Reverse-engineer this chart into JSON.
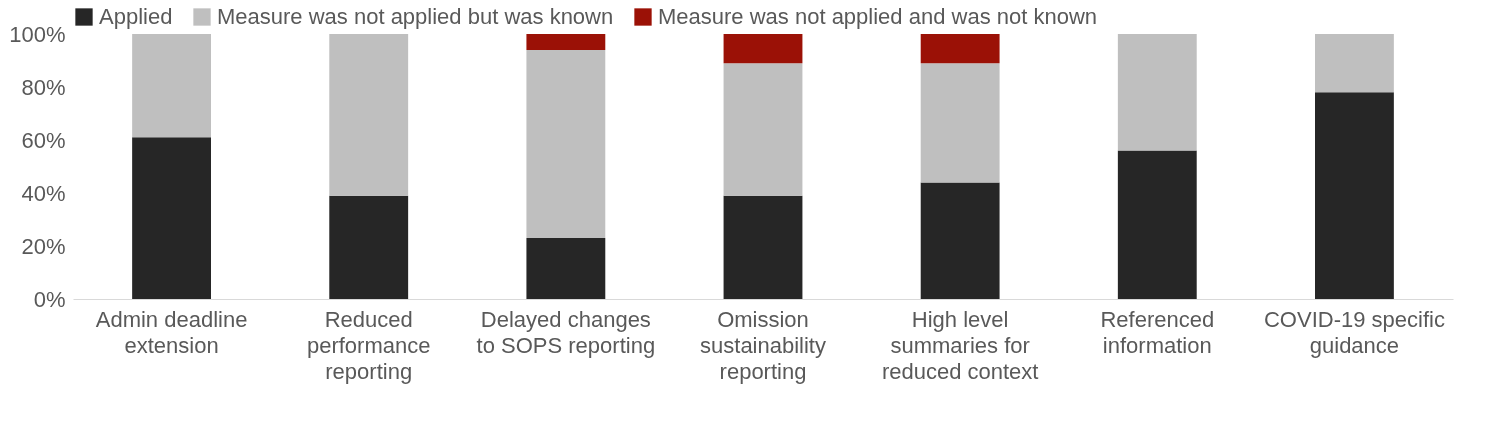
{
  "chart_data": {
    "type": "bar",
    "stacked": true,
    "categories": [
      "Admin deadline extension",
      "Reduced performance reporting",
      "Delayed changes to SOPS reporting",
      "Omission sustainability reporting",
      "High level summaries for reduced context",
      "Referenced information",
      "COVID-19 specific guidance"
    ],
    "series": [
      {
        "name": "Applied",
        "color": "#262626",
        "values": [
          61,
          39,
          23,
          39,
          44,
          56,
          78
        ]
      },
      {
        "name": "Measure was not applied but was known",
        "color": "#bfbfbf",
        "values": [
          39,
          61,
          71,
          50,
          45,
          44,
          22
        ]
      },
      {
        "name": "Measure was not applied and was not known",
        "color": "#9b1106",
        "values": [
          0,
          0,
          6,
          11,
          11,
          0,
          0
        ]
      }
    ],
    "ylim": [
      0,
      100
    ],
    "yticks": [
      {
        "value": 0,
        "label": "0%"
      },
      {
        "value": 20,
        "label": "20%"
      },
      {
        "value": 40,
        "label": "40%"
      },
      {
        "value": 60,
        "label": "60%"
      },
      {
        "value": 80,
        "label": "80%"
      },
      {
        "value": 100,
        "label": "100%"
      }
    ],
    "grid": false,
    "legend": "top"
  }
}
